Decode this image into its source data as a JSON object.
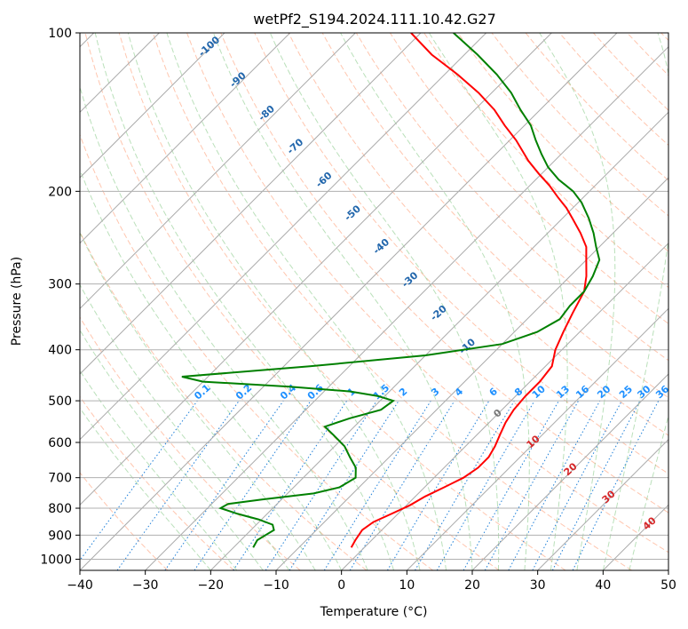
{
  "chart_data": {
    "type": "line",
    "title": "wetPf2_S194.2024.111.10.42.G27",
    "xlabel": "Temperature (°C)",
    "ylabel": "Pressure (hPa)",
    "xlim": [
      -40,
      50
    ],
    "ylim": [
      1050,
      100
    ],
    "y_scale": "log",
    "grid": true,
    "x_ticks": [
      "−40",
      "−30",
      "−20",
      "−10",
      "0",
      "10",
      "20",
      "30",
      "40",
      "50"
    ],
    "y_ticks": [
      "100",
      "200",
      "300",
      "400",
      "500",
      "600",
      "700",
      "800",
      "900",
      "1000"
    ],
    "x_tick_values": [
      -40,
      -30,
      -20,
      -10,
      0,
      10,
      20,
      30,
      40,
      50
    ],
    "y_tick_values": [
      100,
      200,
      300,
      400,
      500,
      600,
      700,
      800,
      900,
      1000
    ],
    "series": [
      {
        "color": "#ff0000",
        "pressure": [
          950,
          920,
          880,
          850,
          820,
          790,
          760,
          730,
          700,
          670,
          640,
          610,
          580,
          550,
          520,
          490,
          460,
          430,
          400,
          370,
          340,
          310,
          290,
          270,
          255,
          240,
          225,
          215,
          205,
          195,
          185,
          175,
          160,
          150,
          140,
          130,
          120,
          110,
          100
        ],
        "temperature": [
          -2.0,
          -2.5,
          -3.0,
          -2.5,
          -1.0,
          0.5,
          1.5,
          3.0,
          4.5,
          5.2,
          5.2,
          4.5,
          3.5,
          2.5,
          1.8,
          1.5,
          1.5,
          1.0,
          -1.0,
          -2.5,
          -4.0,
          -5.5,
          -7.5,
          -10.0,
          -12.0,
          -15.0,
          -18.5,
          -21.0,
          -24.0,
          -27.0,
          -30.5,
          -34.0,
          -39.0,
          -43.0,
          -47.0,
          -52.0,
          -58.0,
          -65.0,
          -71.5
        ]
      },
      {
        "color": "#008000",
        "pressure": [
          950,
          920,
          900,
          880,
          860,
          840,
          820,
          800,
          785,
          770,
          750,
          730,
          700,
          670,
          640,
          610,
          580,
          560,
          540,
          520,
          500,
          490,
          480,
          470,
          460,
          450,
          430,
          410,
          390,
          370,
          350,
          330,
          310,
          290,
          270,
          255,
          240,
          225,
          210,
          200,
          190,
          180,
          170,
          160,
          150,
          140,
          130,
          120,
          110,
          100
        ],
        "dewpoint": [
          -17,
          -17.5,
          -17,
          -16.5,
          -17.5,
          -20.5,
          -24.5,
          -28.0,
          -27.5,
          -23.0,
          -16.0,
          -13.0,
          -12.0,
          -13.5,
          -16.0,
          -18.5,
          -22.0,
          -24.5,
          -22.0,
          -18.5,
          -18.0,
          -21.0,
          -26.0,
          -36.0,
          -50.0,
          -54.0,
          -36.0,
          -20.0,
          -10.0,
          -6.5,
          -5.0,
          -5.5,
          -5.5,
          -6.5,
          -8.0,
          -10.5,
          -13.0,
          -16.0,
          -19.5,
          -22.5,
          -26.5,
          -30.0,
          -33.0,
          -36.0,
          -39.0,
          -43.0,
          -47.0,
          -52.0,
          -58.0,
          -65.0
        ]
      }
    ],
    "dry_adiabat_labels": [
      "-100",
      "-90",
      "-80",
      "-70",
      "-60",
      "-50",
      "-40",
      "-30",
      "-20",
      "-10"
    ],
    "moist_adiabat_labels": [
      "0",
      "10",
      "20",
      "30",
      "40"
    ],
    "mixing_ratio_labels": [
      "0.1",
      "0.2",
      "0.4",
      "0.6",
      "1",
      "1.5",
      "2",
      "3",
      "4",
      "6",
      "8",
      "10",
      "13",
      "16",
      "20",
      "25",
      "30",
      "36"
    ]
  }
}
